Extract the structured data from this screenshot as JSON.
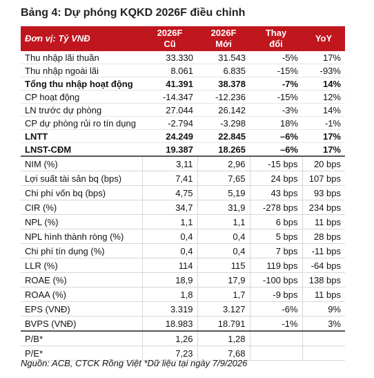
{
  "title": "Bảng 4: Dự phóng KQKD 2026F điều chỉnh",
  "header": [
    [
      "Đơn vị: Tỷ VNĐ"
    ],
    [
      "2026F",
      "Cũ"
    ],
    [
      "2026F",
      "Mới"
    ],
    [
      "Thay",
      "đổi"
    ],
    [
      "YoY"
    ]
  ],
  "sections": [
    {
      "rows": [
        {
          "cells": [
            "Thu nhập lãi thuần",
            "33.330",
            "31.543",
            "-5%",
            "17%"
          ]
        },
        {
          "cells": [
            "Thu nhập ngoài lãi",
            "8.061",
            "6.835",
            "-15%",
            "-93%"
          ]
        },
        {
          "cells": [
            "Tổng thu nhập hoạt động",
            "41.391",
            "38.378",
            "-7%",
            "14%"
          ],
          "bold": true
        },
        {
          "cells": [
            "CP hoạt động",
            "-14.347",
            "-12.236",
            "-15%",
            "12%"
          ]
        },
        {
          "cells": [
            "LN trước dự phòng",
            "27.044",
            "26.142",
            "-3%",
            "14%"
          ]
        },
        {
          "cells": [
            "CP dự phòng rủi ro tín dụng",
            "-2.794",
            "-3.298",
            "18%",
            "-1%"
          ]
        },
        {
          "cells": [
            "LNTT",
            "24.249",
            "22.845",
            "–6%",
            "17%"
          ],
          "bold": true
        },
        {
          "cells": [
            "LNST-CĐM",
            "19.387",
            "18.265",
            "–6%",
            "17%"
          ],
          "bold": true
        }
      ]
    },
    {
      "rows": [
        {
          "cells": [
            "NIM (%)",
            "3,11",
            "2,96",
            "-15 bps",
            "20 bps"
          ]
        },
        {
          "cells": [
            "Lợi suất tài sản bq (bps)",
            "7,41",
            "7,65",
            "24 bps",
            "107 bps"
          ]
        },
        {
          "cells": [
            "Chi phí vốn bq (bps)",
            "4,75",
            "5,19",
            "43 bps",
            "93 bps"
          ]
        },
        {
          "cells": [
            "CIR (%)",
            "34,7",
            "31,9",
            "-278 bps",
            "234 bps"
          ]
        },
        {
          "cells": [
            "NPL (%)",
            "1,1",
            "1,1",
            "6 bps",
            "11 bps"
          ]
        },
        {
          "cells": [
            "NPL hình thành ròng (%)",
            "0,4",
            "0,4",
            "5 bps",
            "28 bps"
          ]
        },
        {
          "cells": [
            "Chi phí tín dụng (%)",
            "0,4",
            "0,4",
            "7 bps",
            "-11 bps"
          ]
        },
        {
          "cells": [
            "LLR (%)",
            "114",
            "115",
            "119 bps",
            "-64 bps"
          ]
        },
        {
          "cells": [
            "ROAE (%)",
            "18,9",
            "17,9",
            "-100 bps",
            "138 bps"
          ]
        },
        {
          "cells": [
            "ROAA (%)",
            "1,8",
            "1,7",
            "-9 bps",
            "11 bps"
          ]
        },
        {
          "cells": [
            "EPS (VNĐ)",
            "3.319",
            "3.127",
            "-6%",
            "9%"
          ]
        },
        {
          "cells": [
            "BVPS (VNĐ)",
            "18.983",
            "18.791",
            "-1%",
            "3%"
          ]
        }
      ]
    },
    {
      "rows": [
        {
          "cells": [
            "P/B*",
            "1,26",
            "1,28"
          ]
        },
        {
          "cells": [
            "P/E*",
            "7,23",
            "7,68"
          ]
        }
      ]
    }
  ],
  "footer": "Nguồn: ACB, CTCK Rồng Việt *Dữ liệu tại ngày 7/9/2026"
}
